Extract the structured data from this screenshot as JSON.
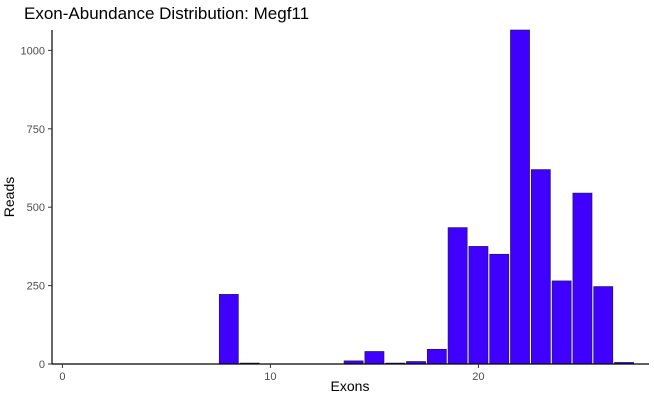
{
  "chart_data": {
    "type": "bar",
    "title": "Exon-Abundance Distribution: Megf11",
    "xlabel": "Exons",
    "ylabel": "Reads",
    "x": [
      0,
      1,
      2,
      3,
      4,
      5,
      6,
      7,
      8,
      9,
      10,
      11,
      12,
      13,
      14,
      15,
      16,
      17,
      18,
      19,
      20,
      21,
      22,
      23,
      24,
      25,
      26,
      27
    ],
    "values": [
      0,
      0,
      0,
      0,
      0,
      0,
      0,
      0,
      222,
      3,
      0,
      0,
      0,
      0,
      10,
      40,
      3,
      8,
      47,
      435,
      375,
      350,
      1065,
      620,
      265,
      545,
      247,
      5
    ],
    "xlim": [
      -0.5,
      28.2
    ],
    "ylim": [
      0,
      1065
    ],
    "x_ticks": [
      0,
      10,
      20
    ],
    "y_ticks": [
      0,
      250,
      500,
      750,
      1000
    ],
    "bar_color": "#4000ff",
    "bar_edge_color": "#1a1a40",
    "grid": false
  }
}
